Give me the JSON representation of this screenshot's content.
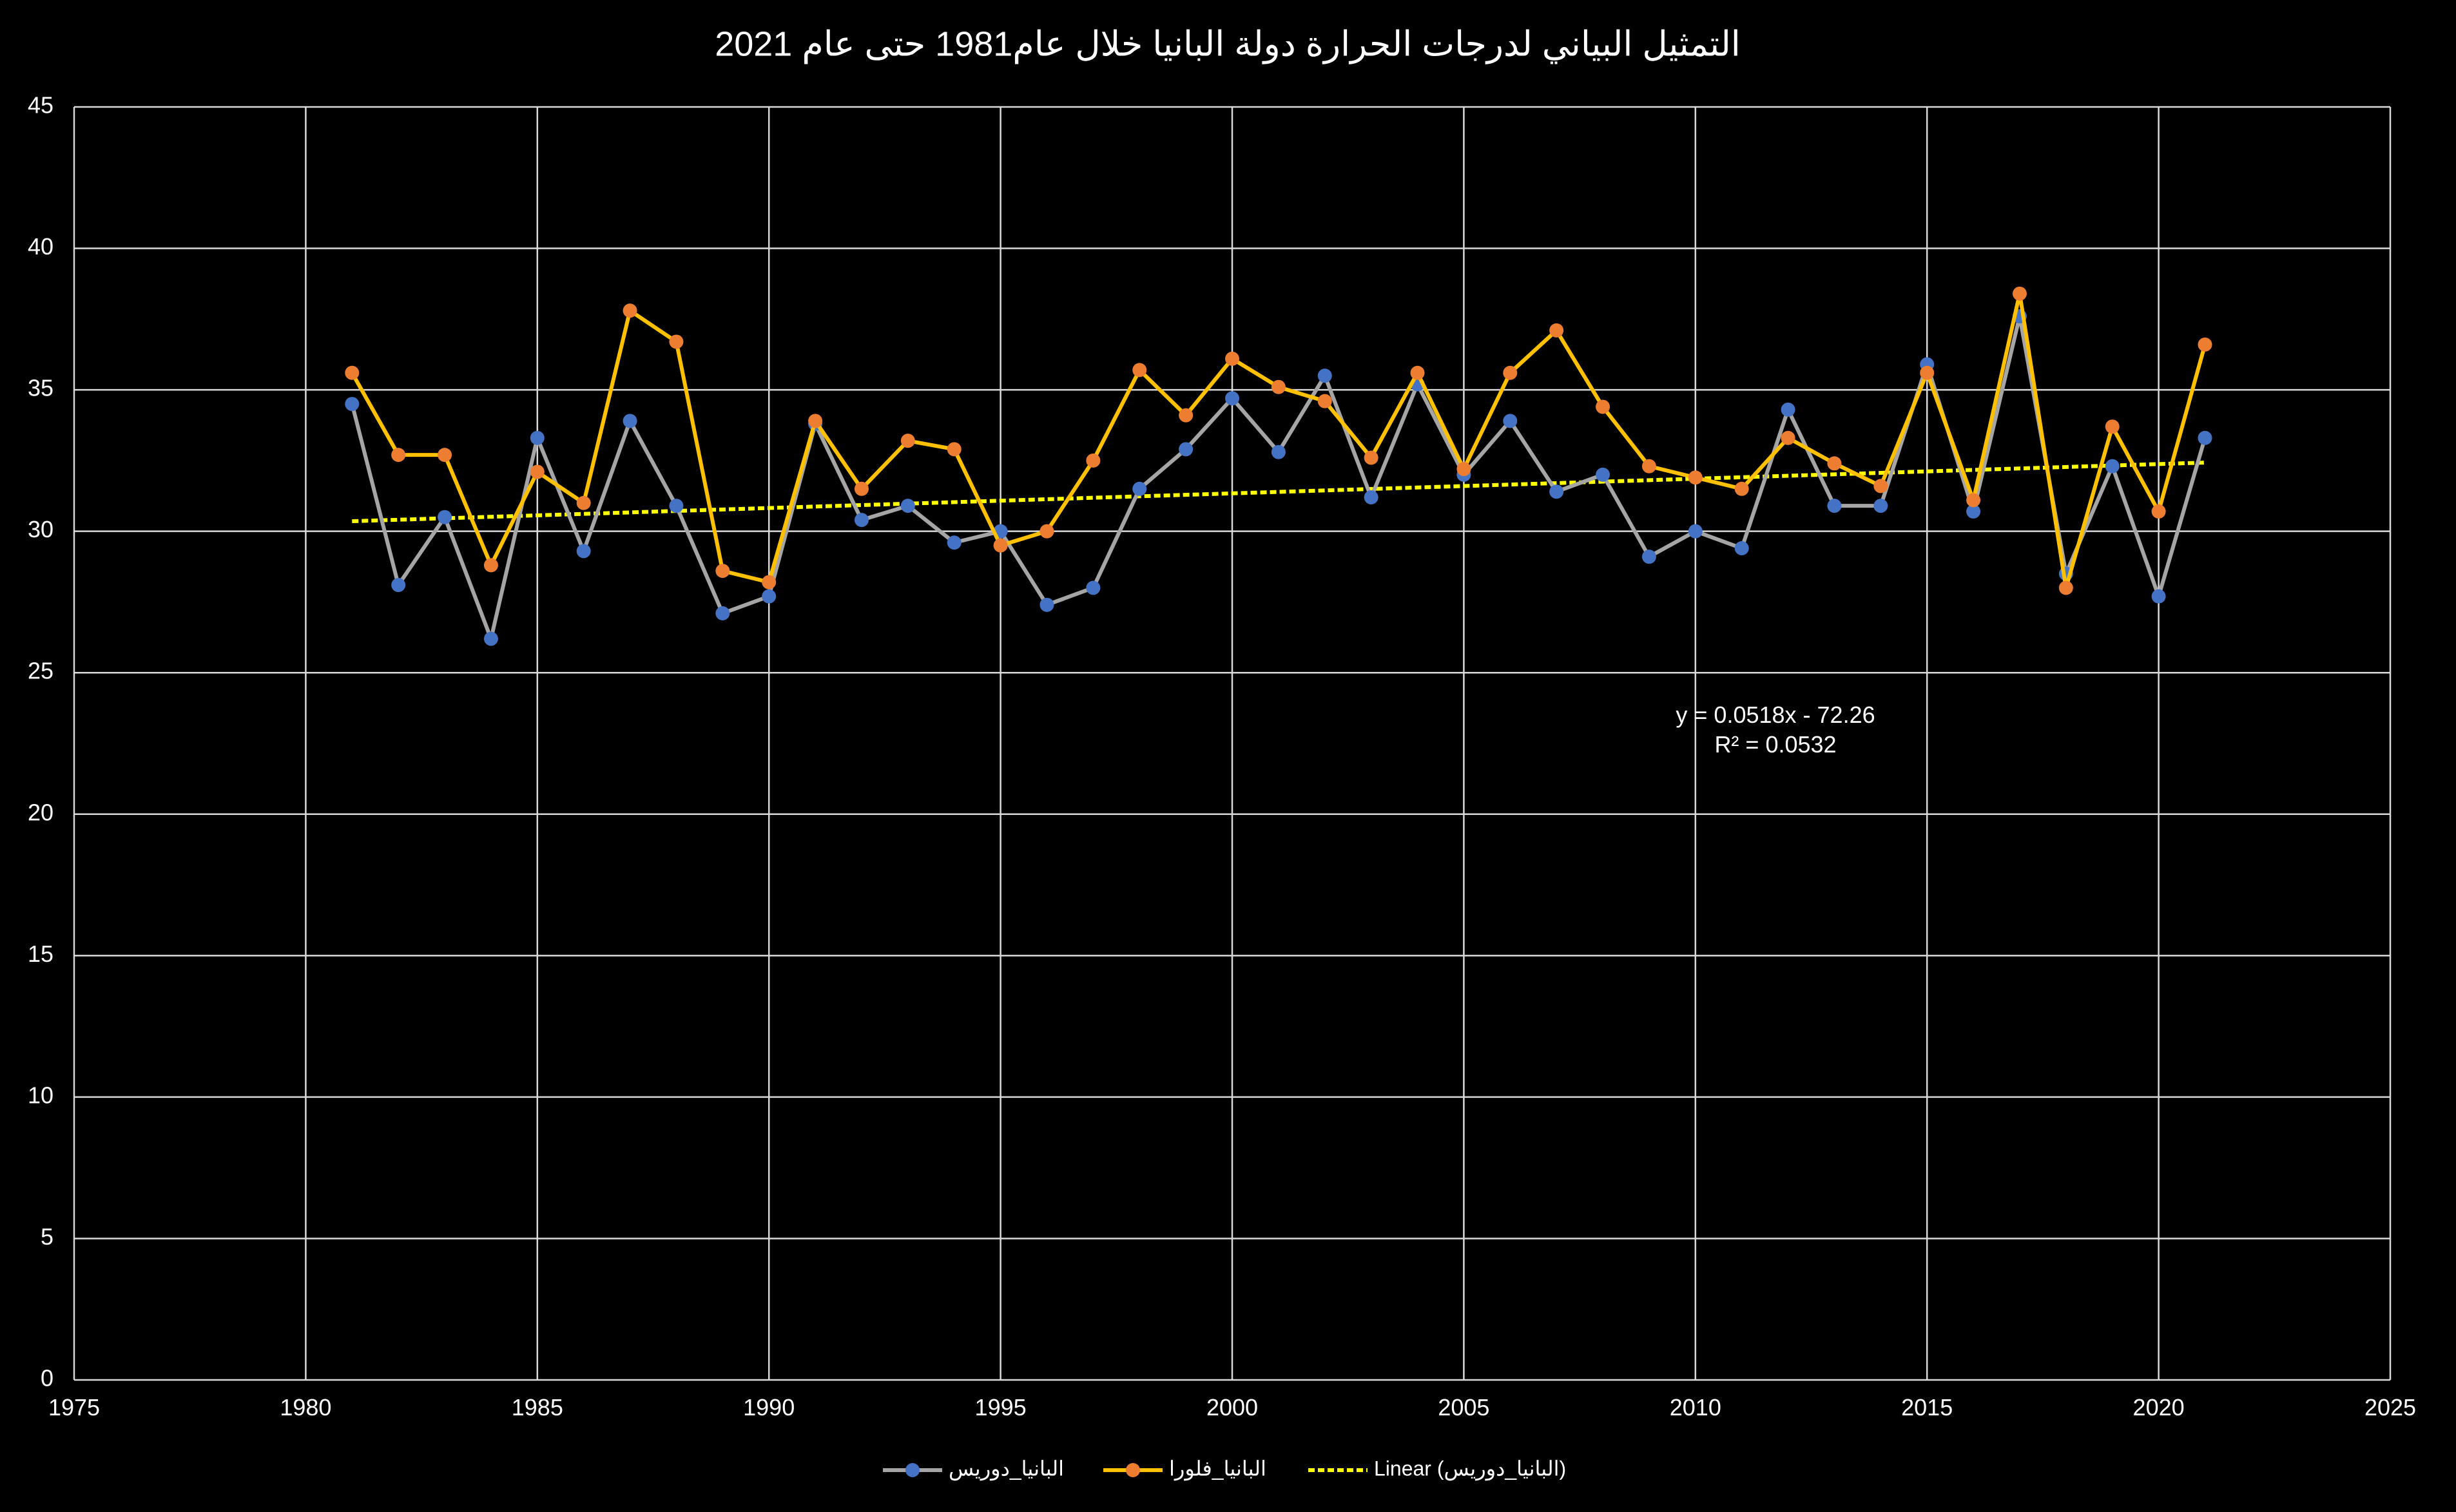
{
  "chart_data": {
    "type": "line",
    "title": "التمثيل البياني لدرجات الحرارة دولة البانيا خلال عام1981 حتى عام 2021",
    "xlabel": "",
    "ylabel": "",
    "xlim": [
      1975,
      2025
    ],
    "ylim": [
      0,
      45
    ],
    "xticks": [
      "1975",
      "1980",
      "1985",
      "1990",
      "1995",
      "2000",
      "2005",
      "2010",
      "2015",
      "2020",
      "2025"
    ],
    "yticks": [
      "0",
      "5",
      "10",
      "15",
      "20",
      "25",
      "30",
      "35",
      "40",
      "45"
    ],
    "grid": true,
    "legend_position": "bottom",
    "background": "#000000",
    "x": [
      1981,
      1982,
      1983,
      1984,
      1985,
      1986,
      1987,
      1988,
      1989,
      1990,
      1991,
      1992,
      1993,
      1994,
      1995,
      1996,
      1997,
      1998,
      1999,
      2000,
      2001,
      2002,
      2003,
      2004,
      2005,
      2006,
      2007,
      2008,
      2009,
      2010,
      2011,
      2012,
      2013,
      2014,
      2015,
      2016,
      2017,
      2018,
      2019,
      2020,
      2021
    ],
    "series": [
      {
        "name": "البانيا_دوريس",
        "line_color": "#a5a5a5",
        "marker_color": "#4472c4",
        "values": [
          34.5,
          28.1,
          30.5,
          26.2,
          33.3,
          29.3,
          33.9,
          30.9,
          27.1,
          27.7,
          33.8,
          30.4,
          30.9,
          29.6,
          30.0,
          27.4,
          28.0,
          31.5,
          32.9,
          34.7,
          32.8,
          35.5,
          31.2,
          35.2,
          32.0,
          33.9,
          31.4,
          32.0,
          29.1,
          30.0,
          29.4,
          34.3,
          30.9,
          30.9,
          35.9,
          30.7,
          37.6,
          28.5,
          32.3,
          27.7,
          33.3
        ]
      },
      {
        "name": "البانيا_فلورا",
        "line_color": "#ffc000",
        "marker_color": "#ed7d31",
        "values": [
          35.6,
          32.7,
          32.7,
          28.8,
          32.1,
          31.0,
          37.8,
          36.7,
          28.6,
          28.2,
          33.9,
          31.5,
          33.2,
          32.9,
          29.5,
          30.0,
          32.5,
          35.7,
          34.1,
          36.1,
          35.1,
          34.6,
          32.6,
          35.6,
          32.2,
          35.6,
          37.1,
          34.4,
          32.3,
          31.9,
          31.5,
          33.3,
          32.4,
          31.6,
          35.6,
          31.1,
          38.4,
          28.0,
          33.7,
          30.7,
          36.6
        ]
      }
    ],
    "trendline": {
      "name": "Linear (البانيا_دوريس)",
      "color": "#ffff00",
      "slope": 0.0518,
      "intercept": -72.26,
      "equation": "y = 0.0518x - 72.26",
      "r_squared": "R² = 0.0532"
    }
  }
}
